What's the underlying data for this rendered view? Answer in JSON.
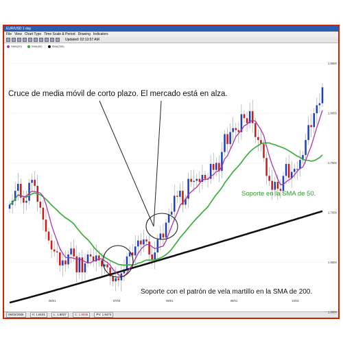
{
  "window": {
    "title": "EUR/USD 1 day",
    "menu": [
      "File",
      "View",
      "Chart Type",
      "Time Scale & Period",
      "Drawing",
      "Indicators"
    ],
    "updated": "Updated: 02:13:57 AM"
  },
  "legend": [
    {
      "name": "SMA(20)",
      "color": "#aa33aa"
    },
    {
      "name": "SMA(50)",
      "color": "#33aa33"
    },
    {
      "name": "SMA(200)",
      "color": "#111111"
    }
  ],
  "status": {
    "items": [
      "06/02/2005",
      "H: 1.8151",
      "L: 1.8027",
      "C: 1.8046",
      "PV: 1.8474"
    ]
  },
  "chart_data": {
    "type": "candlestick",
    "ylim": [
      1.6,
      1.86
    ],
    "yticks": [
      {
        "value": 1.85,
        "label": "1.8500"
      },
      {
        "value": 1.8,
        "label": "1.8000"
      },
      {
        "value": 1.75,
        "label": "1.7500"
      },
      {
        "value": 1.7,
        "label": "1.7000"
      },
      {
        "value": 1.65,
        "label": "1.6500"
      },
      {
        "value": 1.6,
        "label": "1.6000"
      }
    ],
    "xticks": [
      {
        "index": 15,
        "label": "06/01"
      },
      {
        "index": 38,
        "label": "07/03"
      },
      {
        "index": 57,
        "label": "09/01"
      },
      {
        "index": 80,
        "label": "09/01"
      },
      {
        "index": 102,
        "label": "10/02"
      }
    ],
    "colors": {
      "up": "#1f3fbf",
      "down": "#d01818",
      "sma20": "#aa33aa",
      "sma50": "#3cad3c",
      "sma200": "#111111"
    },
    "annotations": {
      "cross": "Cruce de media móvil de corto plazo. El mercado está en alza.",
      "support50": "Soporte en la SMA de 50.",
      "support200": "Soporte con el patrón de vela martillo en la SMA de 200."
    },
    "close": [
      1.708,
      1.712,
      1.722,
      1.729,
      1.715,
      1.71,
      1.712,
      1.73,
      1.733,
      1.727,
      1.711,
      1.705,
      1.693,
      1.681,
      1.672,
      1.663,
      1.661,
      1.66,
      1.647,
      1.652,
      1.648,
      1.658,
      1.664,
      1.656,
      1.64,
      1.655,
      1.64,
      1.649,
      1.658,
      1.656,
      1.651,
      1.657,
      1.652,
      1.646,
      1.648,
      1.645,
      1.636,
      1.631,
      1.634,
      1.632,
      1.639,
      1.643,
      1.656,
      1.66,
      1.657,
      1.666,
      1.672,
      1.668,
      1.673,
      1.671,
      1.658,
      1.653,
      1.66,
      1.673,
      1.679,
      1.675,
      1.69,
      1.698,
      1.701,
      1.717,
      1.716,
      1.722,
      1.708,
      1.714,
      1.734,
      1.731,
      1.732,
      1.734,
      1.731,
      1.738,
      1.734,
      1.734,
      1.749,
      1.743,
      1.75,
      1.742,
      1.761,
      1.779,
      1.769,
      1.781,
      1.785,
      1.783,
      1.781,
      1.799,
      1.795,
      1.79,
      1.802,
      1.79,
      1.776,
      1.773,
      1.769,
      1.755,
      1.737,
      1.732,
      1.723,
      1.731,
      1.724,
      1.722,
      1.737,
      1.749,
      1.735,
      1.741,
      1.744,
      1.744,
      1.753,
      1.758,
      1.773,
      1.788,
      1.786,
      1.8,
      1.808,
      1.81,
      1.826
    ]
  }
}
